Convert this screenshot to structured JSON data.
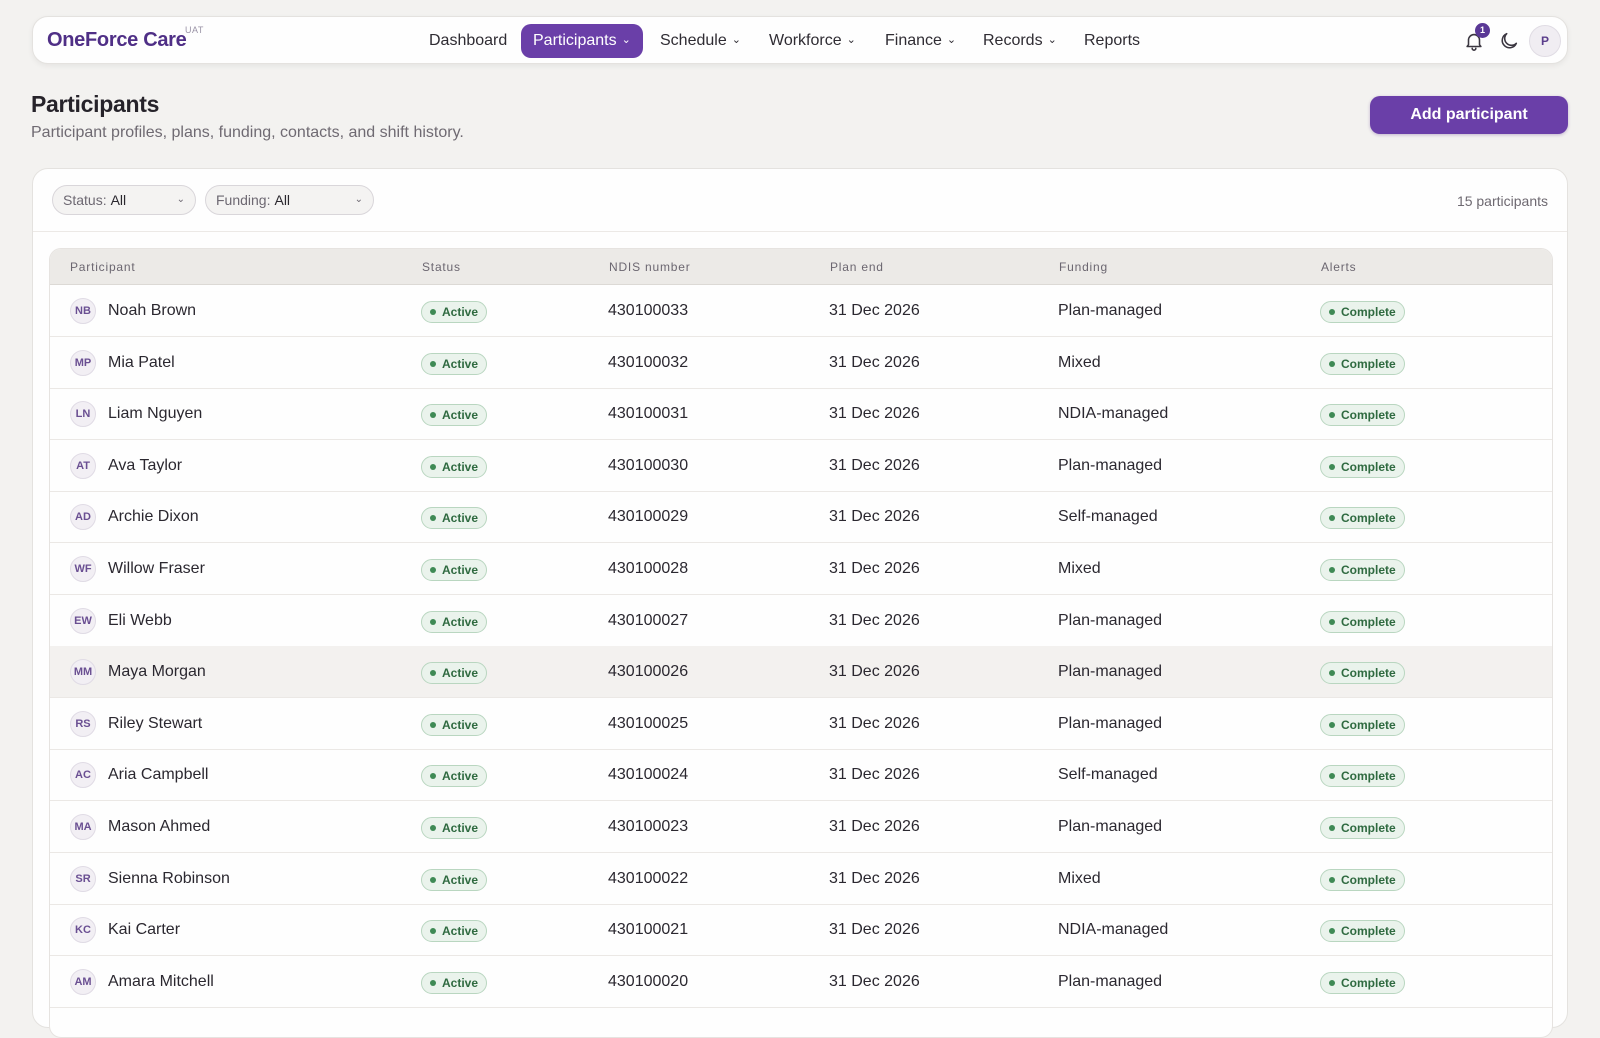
{
  "app": {
    "brand": "OneForce Care",
    "env": "UAT"
  },
  "nav": {
    "items": [
      {
        "label": "Dashboard",
        "has_menu": false
      },
      {
        "label": "Participants",
        "has_menu": true,
        "active": true
      },
      {
        "label": "Schedule",
        "has_menu": true
      },
      {
        "label": "Workforce",
        "has_menu": true
      },
      {
        "label": "Finance",
        "has_menu": true
      },
      {
        "label": "Records",
        "has_menu": true
      },
      {
        "label": "Reports",
        "has_menu": false
      }
    ],
    "notifications_count": "1",
    "user_initial": "P"
  },
  "page": {
    "title": "Participants",
    "subtitle": "Participant profiles, plans, funding, contacts, and shift history.",
    "add_button": "Add participant"
  },
  "filters": {
    "status_label": "Status:",
    "status_value": "All",
    "funding_label": "Funding:",
    "funding_value": "All",
    "count": "15 participants"
  },
  "table": {
    "headers": [
      "Participant",
      "Status",
      "NDIS number",
      "Plan end",
      "Funding",
      "Alerts"
    ],
    "rows": [
      {
        "initials": "NB",
        "name": "Noah Brown",
        "status": "Active",
        "ndis": "430100033",
        "plan_end": "31 Dec 2026",
        "funding": "Plan-managed",
        "alerts": "Complete"
      },
      {
        "initials": "MP",
        "name": "Mia Patel",
        "status": "Active",
        "ndis": "430100032",
        "plan_end": "31 Dec 2026",
        "funding": "Mixed",
        "alerts": "Complete"
      },
      {
        "initials": "LN",
        "name": "Liam Nguyen",
        "status": "Active",
        "ndis": "430100031",
        "plan_end": "31 Dec 2026",
        "funding": "NDIA-managed",
        "alerts": "Complete"
      },
      {
        "initials": "AT",
        "name": "Ava Taylor",
        "status": "Active",
        "ndis": "430100030",
        "plan_end": "31 Dec 2026",
        "funding": "Plan-managed",
        "alerts": "Complete"
      },
      {
        "initials": "AD",
        "name": "Archie Dixon",
        "status": "Active",
        "ndis": "430100029",
        "plan_end": "31 Dec 2026",
        "funding": "Self-managed",
        "alerts": "Complete"
      },
      {
        "initials": "WF",
        "name": "Willow Fraser",
        "status": "Active",
        "ndis": "430100028",
        "plan_end": "31 Dec 2026",
        "funding": "Mixed",
        "alerts": "Complete"
      },
      {
        "initials": "EW",
        "name": "Eli Webb",
        "status": "Active",
        "ndis": "430100027",
        "plan_end": "31 Dec 2026",
        "funding": "Plan-managed",
        "alerts": "Complete"
      },
      {
        "initials": "MM",
        "name": "Maya Morgan",
        "status": "Active",
        "ndis": "430100026",
        "plan_end": "31 Dec 2026",
        "funding": "Plan-managed",
        "alerts": "Complete"
      },
      {
        "initials": "RS",
        "name": "Riley Stewart",
        "status": "Active",
        "ndis": "430100025",
        "plan_end": "31 Dec 2026",
        "funding": "Plan-managed",
        "alerts": "Complete"
      },
      {
        "initials": "AC",
        "name": "Aria Campbell",
        "status": "Active",
        "ndis": "430100024",
        "plan_end": "31 Dec 2026",
        "funding": "Self-managed",
        "alerts": "Complete"
      },
      {
        "initials": "MA",
        "name": "Mason Ahmed",
        "status": "Active",
        "ndis": "430100023",
        "plan_end": "31 Dec 2026",
        "funding": "Plan-managed",
        "alerts": "Complete"
      },
      {
        "initials": "SR",
        "name": "Sienna Robinson",
        "status": "Active",
        "ndis": "430100022",
        "plan_end": "31 Dec 2026",
        "funding": "Mixed",
        "alerts": "Complete"
      },
      {
        "initials": "KC",
        "name": "Kai Carter",
        "status": "Active",
        "ndis": "430100021",
        "plan_end": "31 Dec 2026",
        "funding": "NDIA-managed",
        "alerts": "Complete"
      },
      {
        "initials": "AM",
        "name": "Amara Mitchell",
        "status": "Active",
        "ndis": "430100020",
        "plan_end": "31 Dec 2026",
        "funding": "Plan-managed",
        "alerts": "Complete"
      }
    ]
  },
  "colors": {
    "accent": "#6a3fa8",
    "brand": "#4f2f86",
    "status_green": "#3f8a55"
  },
  "icons": {
    "notifications": "bell-icon",
    "theme": "moon-icon",
    "menu": "chevron-down-icon"
  }
}
